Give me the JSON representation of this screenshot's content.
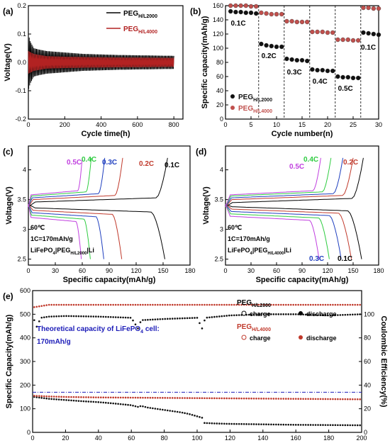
{
  "chart_data": [
    {
      "id": "a",
      "panel_label": "(a)",
      "type": "line",
      "xlabel": "Cycle time(h)",
      "ylabel": "Voltage(V)",
      "xlim": [
        0,
        850
      ],
      "ylim": [
        -0.2,
        0.2
      ],
      "xticks": [
        0,
        200,
        400,
        600,
        800
      ],
      "yticks": [
        -0.2,
        -0.1,
        0.0,
        0.1,
        0.2
      ],
      "ytick_labels": [
        "-0.2",
        "-0.1",
        "0.0",
        "0.1",
        "0.2"
      ],
      "legend": "top-right",
      "series": [
        {
          "name": "PEG",
          "name_sub": "H/L2000",
          "color": "#000000",
          "envelope": [
            [
              0,
              0.1
            ],
            [
              10,
              0.075
            ],
            [
              30,
              0.05
            ],
            [
              60,
              0.045
            ],
            [
              100,
              0.04
            ],
            [
              200,
              0.035
            ],
            [
              300,
              0.03
            ],
            [
              400,
              0.028
            ],
            [
              500,
              0.026
            ],
            [
              600,
              0.025
            ],
            [
              700,
              0.024
            ],
            [
              800,
              0.023
            ]
          ]
        },
        {
          "name": "PEG",
          "name_sub": "H/L4000",
          "color": "#b22222",
          "envelope": [
            [
              0,
              0.04
            ],
            [
              30,
              0.03
            ],
            [
              100,
              0.022
            ],
            [
              200,
              0.02
            ],
            [
              400,
              0.018
            ],
            [
              600,
              0.017
            ],
            [
              800,
              0.016
            ]
          ]
        }
      ]
    },
    {
      "id": "b",
      "panel_label": "(b)",
      "type": "scatter",
      "xlabel": "Cycle number(n)",
      "ylabel": "Specific capacity(mAh/g)",
      "xlim": [
        0,
        30
      ],
      "ylim": [
        0,
        160
      ],
      "xticks": [
        0,
        5,
        10,
        15,
        20,
        25,
        30
      ],
      "yticks": [
        0,
        20,
        40,
        60,
        80,
        100,
        120,
        140,
        160
      ],
      "dividers": [
        6.5,
        11.5,
        16.5,
        21.5,
        26.5
      ],
      "rate_labels": [
        {
          "text": "0.1C",
          "x": 2.5,
          "y": 132
        },
        {
          "text": "0.2C",
          "x": 8.5,
          "y": 86
        },
        {
          "text": "0.3C",
          "x": 13.5,
          "y": 63
        },
        {
          "text": "0.4C",
          "x": 18.5,
          "y": 50
        },
        {
          "text": "0.5C",
          "x": 23.5,
          "y": 40
        },
        {
          "text": "0.1C",
          "x": 28,
          "y": 98
        }
      ],
      "legend": "bottom-left",
      "series": [
        {
          "name": "PEG",
          "name_sub": "H/L2000",
          "color": "#111111",
          "x": [
            1,
            2,
            3,
            4,
            5,
            6,
            7,
            8,
            9,
            10,
            11,
            12,
            13,
            14,
            15,
            16,
            17,
            18,
            19,
            20,
            21,
            22,
            23,
            24,
            25,
            26,
            27,
            28,
            29,
            30
          ],
          "y": [
            152,
            151,
            151,
            150,
            150,
            149,
            106,
            104,
            103,
            102,
            102,
            85,
            84,
            83,
            83,
            82,
            70,
            69,
            69,
            68,
            68,
            60,
            59,
            59,
            58,
            58,
            122,
            121,
            120,
            119
          ]
        },
        {
          "name": "PEG",
          "name_sub": "H/L4000",
          "color": "#c0504d",
          "x": [
            1,
            2,
            3,
            4,
            5,
            6,
            7,
            8,
            9,
            10,
            11,
            12,
            13,
            14,
            15,
            16,
            17,
            18,
            19,
            20,
            21,
            22,
            23,
            24,
            25,
            26,
            27,
            28,
            29,
            30
          ],
          "y": [
            160,
            160,
            160,
            160,
            159,
            159,
            150,
            149,
            148,
            148,
            148,
            138,
            138,
            137,
            137,
            137,
            123,
            123,
            123,
            122,
            122,
            112,
            112,
            112,
            111,
            111,
            157,
            157,
            156,
            156
          ]
        }
      ]
    },
    {
      "id": "c",
      "panel_label": "(c)",
      "type": "line",
      "xlabel": "Specific capacity(mAh/g)",
      "ylabel": "Voltage(V)",
      "xlim": [
        0,
        180
      ],
      "ylim": [
        2.4,
        4.4
      ],
      "xticks": [
        0,
        30,
        60,
        90,
        120,
        150,
        180
      ],
      "yticks": [
        2.5,
        3.0,
        3.5,
        4.0
      ],
      "notes": [
        "60℃",
        "1C=170mAh/g"
      ],
      "cell_label": {
        "a": "LiFePO",
        "a_sub": "4",
        "b": "|PEG",
        "b_sub": "H/L2000",
        "c": "|Li"
      },
      "series": [
        {
          "name": "0.1C",
          "color": "#000000",
          "charge_cap": 155,
          "discharge_cap": 152,
          "plateau_c": 3.46,
          "plateau_d": 3.36
        },
        {
          "name": "0.2C",
          "color": "#c0392b",
          "charge_cap": 105,
          "discharge_cap": 104,
          "plateau_c": 3.5,
          "plateau_d": 3.32
        },
        {
          "name": "0.3C",
          "color": "#1f3fbf",
          "charge_cap": 85,
          "discharge_cap": 84,
          "plateau_c": 3.53,
          "plateau_d": 3.28
        },
        {
          "name": "0.4C",
          "color": "#2ecc40",
          "charge_cap": 70,
          "discharge_cap": 69,
          "plateau_c": 3.56,
          "plateau_d": 3.24
        },
        {
          "name": "0.5C",
          "color": "#c03fdf",
          "charge_cap": 60,
          "discharge_cap": 59,
          "plateau_c": 3.58,
          "plateau_d": 3.2
        }
      ]
    },
    {
      "id": "d",
      "panel_label": "(d)",
      "type": "line",
      "xlabel": "Specific capacity(mAh/g)",
      "ylabel": "Voltage(V)",
      "xlim": [
        0,
        180
      ],
      "ylim": [
        2.4,
        4.4
      ],
      "xticks": [
        0,
        30,
        60,
        90,
        120,
        150,
        180
      ],
      "yticks": [
        2.5,
        3.0,
        3.5,
        4.0
      ],
      "notes": [
        "60℃",
        "1C=170mAh/g"
      ],
      "cell_label": {
        "a": "LiFePO",
        "a_sub": "4",
        "b": "|PEG",
        "b_sub": "H/L4000",
        "c": "|Li"
      },
      "series": [
        {
          "name": "0.1C",
          "color": "#000000",
          "charge_cap": 162,
          "discharge_cap": 160,
          "plateau_c": 3.45,
          "plateau_d": 3.38
        },
        {
          "name": "0.2C",
          "color": "#c0392b",
          "charge_cap": 150,
          "discharge_cap": 148,
          "plateau_c": 3.5,
          "plateau_d": 3.34
        },
        {
          "name": "0.3C",
          "color": "#1f3fbf",
          "charge_cap": 138,
          "discharge_cap": 136,
          "plateau_c": 3.53,
          "plateau_d": 3.3
        },
        {
          "name": "0.4C",
          "color": "#2ecc40",
          "charge_cap": 124,
          "discharge_cap": 122,
          "plateau_c": 3.56,
          "plateau_d": 3.26
        },
        {
          "name": "0.5C",
          "color": "#c03fdf",
          "charge_cap": 112,
          "discharge_cap": 110,
          "plateau_c": 3.58,
          "plateau_d": 3.22
        }
      ]
    },
    {
      "id": "e",
      "panel_label": "(e)",
      "type": "scatter",
      "xlabel": "Cycle number(n)",
      "ylabel": "Specific Capacity(mAh/g)",
      "y2label": "Coulombic Efficiency(%)",
      "xlim": [
        0,
        200
      ],
      "ylim": [
        0,
        600
      ],
      "y2lim": [
        0,
        120
      ],
      "xticks": [
        0,
        20,
        40,
        60,
        80,
        100,
        120,
        140,
        160,
        180,
        200
      ],
      "yticks": [
        0,
        100,
        200,
        300,
        400,
        500,
        600
      ],
      "y2ticks": [
        0,
        20,
        40,
        60,
        80,
        100
      ],
      "reference_line": {
        "y": 170,
        "color": "#1c1cb8"
      },
      "annotation": {
        "line1": "Theoretical capacity of LiFePO",
        "sub": "4",
        "line1_end": " cell:",
        "line2": "170mAh/g"
      },
      "legend": "right",
      "legend_groups": [
        {
          "name": "PEG",
          "name_sub": "H/L2000",
          "color": "#000000",
          "charge": "charge",
          "discharge": "discharge"
        },
        {
          "name": "PEG",
          "name_sub": "H/L4000",
          "color": "#c0392b",
          "charge": "charge",
          "discharge": "discharge"
        }
      ],
      "series": [
        {
          "name": "PEG H/L2000 capacity",
          "color": "#111111",
          "points": [
            [
              1,
              150
            ],
            [
              10,
              142
            ],
            [
              20,
              137
            ],
            [
              30,
              132
            ],
            [
              40,
              128
            ],
            [
              50,
              122
            ],
            [
              60,
              115
            ],
            [
              64,
              108
            ],
            [
              66,
              112
            ],
            [
              70,
              105
            ],
            [
              80,
              95
            ],
            [
              90,
              85
            ],
            [
              95,
              78
            ],
            [
              100,
              68
            ],
            [
              103,
              62
            ],
            [
              104,
              40
            ],
            [
              110,
              38
            ],
            [
              120,
              36
            ],
            [
              140,
              34
            ],
            [
              160,
              32
            ],
            [
              180,
              31
            ],
            [
              200,
              30
            ]
          ]
        },
        {
          "name": "PEG H/L2000 efficiency",
          "color": "#111111",
          "axis": "y2",
          "points": [
            [
              1,
              95
            ],
            [
              2,
              88
            ],
            [
              5,
              97
            ],
            [
              10,
              98
            ],
            [
              20,
              98.5
            ],
            [
              40,
              98
            ],
            [
              60,
              97
            ],
            [
              64,
              88
            ],
            [
              66,
              95
            ],
            [
              80,
              96
            ],
            [
              100,
              97
            ],
            [
              103,
              88
            ],
            [
              105,
              97
            ],
            [
              120,
              99
            ],
            [
              140,
              100
            ],
            [
              160,
              100
            ],
            [
              180,
              99
            ],
            [
              200,
              100
            ]
          ]
        },
        {
          "name": "PEG H/L4000 capacity",
          "color": "#c0392b",
          "points": [
            [
              1,
              155
            ],
            [
              10,
              152
            ],
            [
              20,
              150
            ],
            [
              40,
              148
            ],
            [
              60,
              147
            ],
            [
              80,
              146
            ],
            [
              100,
              145
            ],
            [
              120,
              144
            ],
            [
              140,
              143
            ],
            [
              160,
              142
            ],
            [
              180,
              141
            ],
            [
              200,
              140
            ]
          ]
        },
        {
          "name": "PEG H/L4000 efficiency",
          "color": "#c0392b",
          "axis": "y2",
          "points": [
            [
              1,
              106
            ],
            [
              10,
              108
            ],
            [
              50,
              108
            ],
            [
              100,
              108
            ],
            [
              150,
              108
            ],
            [
              200,
              108
            ]
          ]
        }
      ]
    }
  ]
}
